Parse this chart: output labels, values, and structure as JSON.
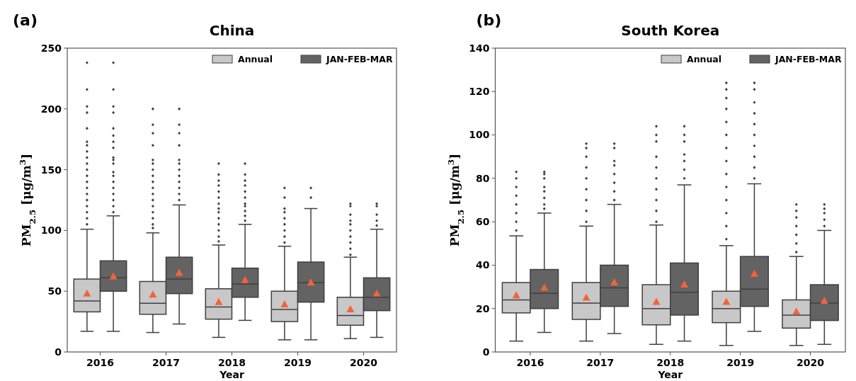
{
  "chart_data": [
    {
      "type": "box",
      "title": "China",
      "xlabel": "Year",
      "ylabel": "PM$_{2.5}$  [μg/m$^{3}$]",
      "annotations": [
        "(a)"
      ],
      "categories": [
        "2016",
        "2017",
        "2018",
        "2019",
        "2020"
      ],
      "ylim": [
        0,
        250
      ],
      "yticks": [
        0,
        50,
        100,
        150,
        200,
        250
      ],
      "legend": "top right",
      "grid": false,
      "series": [
        {
          "name": "Annual",
          "color": "#c8c8c8",
          "boxes": [
            {
              "low": 17,
              "q1": 33,
              "median": 42,
              "q3": 60,
              "high": 101,
              "mean": 48,
              "outliers": [
                105,
                110,
                115,
                120,
                125,
                130,
                135,
                140,
                145,
                150,
                155,
                160,
                165,
                170,
                173,
                184,
                197,
                202,
                216,
                238
              ]
            },
            {
              "low": 16,
              "q1": 31,
              "median": 40,
              "q3": 58,
              "high": 98,
              "mean": 47,
              "outliers": [
                102,
                105,
                110,
                115,
                120,
                125,
                130,
                135,
                140,
                145,
                150,
                155,
                158,
                170,
                180,
                187,
                200
              ]
            },
            {
              "low": 12,
              "q1": 27,
              "median": 37,
              "q3": 52,
              "high": 88,
              "mean": 41,
              "outliers": [
                91,
                95,
                100,
                105,
                110,
                115,
                118,
                122,
                127,
                132,
                137,
                141,
                146,
                155
              ]
            },
            {
              "low": 10,
              "q1": 25,
              "median": 35,
              "q3": 50,
              "high": 87,
              "mean": 39,
              "outliers": [
                90,
                95,
                100,
                105,
                110,
                115,
                118,
                127,
                135
              ]
            },
            {
              "low": 11,
              "q1": 22,
              "median": 30,
              "q3": 45,
              "high": 78,
              "mean": 35,
              "outliers": [
                80,
                85,
                90,
                95,
                100,
                105,
                108,
                113,
                120,
                122
              ]
            }
          ]
        },
        {
          "name": "JAN-FEB-MAR",
          "color": "#636363",
          "boxes": [
            {
              "low": 17,
              "q1": 50,
              "median": 61,
              "q3": 75,
              "high": 112,
              "mean": 62,
              "outliers": [
                115,
                120,
                125,
                130,
                135,
                140,
                145,
                148,
                155,
                158,
                160,
                168,
                173,
                178,
                184,
                197,
                202,
                216,
                238
              ]
            },
            {
              "low": 23,
              "q1": 48,
              "median": 60,
              "q3": 78,
              "high": 121,
              "mean": 65,
              "outliers": [
                125,
                130,
                135,
                140,
                145,
                150,
                155,
                158,
                170,
                180,
                187,
                200
              ]
            },
            {
              "low": 26,
              "q1": 45,
              "median": 56,
              "q3": 69,
              "high": 105,
              "mean": 59,
              "outliers": [
                108,
                112,
                116,
                120,
                122,
                127,
                132,
                137,
                141,
                146,
                155
              ]
            },
            {
              "low": 10,
              "q1": 41,
              "median": 57,
              "q3": 74,
              "high": 118,
              "mean": 57,
              "outliers": [
                127,
                135
              ]
            },
            {
              "low": 12,
              "q1": 34,
              "median": 45,
              "q3": 61,
              "high": 101,
              "mean": 48,
              "outliers": [
                104,
                108,
                113,
                120,
                122
              ]
            }
          ]
        }
      ]
    },
    {
      "type": "box",
      "title": "South Korea",
      "xlabel": "Year",
      "ylabel": "PM$_{2.5}$  [μg/m$^{3}$]",
      "annotations": [
        "(b)"
      ],
      "categories": [
        "2016",
        "2017",
        "2018",
        "2019",
        "2020"
      ],
      "ylim": [
        0,
        140
      ],
      "yticks": [
        0,
        20,
        40,
        60,
        80,
        100,
        120,
        140
      ],
      "legend": "top right",
      "grid": false,
      "series": [
        {
          "name": "Annual",
          "color": "#c8c8c8",
          "boxes": [
            {
              "low": 5,
              "q1": 18,
              "median": 24,
              "q3": 32,
              "high": 53.5,
              "mean": 26,
              "outliers": [
                56,
                60,
                64,
                68,
                72,
                76,
                80,
                83
              ]
            },
            {
              "low": 5,
              "q1": 15,
              "median": 22.5,
              "q3": 32,
              "high": 58,
              "mean": 25,
              "outliers": [
                60,
                65,
                70,
                75,
                80,
                85,
                90,
                94,
                96
              ]
            },
            {
              "low": 3.5,
              "q1": 12.5,
              "median": 20,
              "q3": 31,
              "high": 58.5,
              "mean": 23,
              "outliers": [
                60,
                65,
                70,
                75,
                80,
                85,
                90,
                97,
                100,
                104
              ]
            },
            {
              "low": 3,
              "q1": 13.5,
              "median": 20,
              "q3": 28,
              "high": 49,
              "mean": 23,
              "outliers": [
                52,
                58,
                64,
                70,
                76,
                82,
                88,
                94,
                100,
                106,
                112,
                117,
                121,
                124
              ]
            },
            {
              "low": 3,
              "q1": 11,
              "median": 17,
              "q3": 24,
              "high": 44,
              "mean": 18.5,
              "outliers": [
                46,
                50,
                54,
                58,
                62,
                65,
                68
              ]
            }
          ]
        },
        {
          "name": "JAN-FEB-MAR",
          "color": "#636363",
          "boxes": [
            {
              "low": 9,
              "q1": 20,
              "median": 27,
              "q3": 38,
              "high": 64,
              "mean": 29.5,
              "outliers": [
                66,
                68,
                71,
                74,
                76,
                80,
                82,
                83
              ]
            },
            {
              "low": 8.5,
              "q1": 21,
              "median": 29.5,
              "q3": 40,
              "high": 68,
              "mean": 32,
              "outliers": [
                70,
                74,
                78,
                82,
                86,
                88,
                94,
                96
              ]
            },
            {
              "low": 5,
              "q1": 17,
              "median": 27.5,
              "q3": 41,
              "high": 77,
              "mean": 31,
              "outliers": [
                80,
                84,
                88,
                91,
                97,
                100,
                104
              ]
            },
            {
              "low": 9.5,
              "q1": 21,
              "median": 29,
              "q3": 44,
              "high": 77.5,
              "mean": 36,
              "outliers": [
                80,
                85,
                90,
                95,
                100,
                105,
                110,
                115,
                121,
                124
              ]
            },
            {
              "low": 3.5,
              "q1": 14.5,
              "median": 22.5,
              "q3": 31,
              "high": 56,
              "mean": 23.5,
              "outliers": [
                58,
                61,
                64,
                66,
                68
              ]
            }
          ]
        }
      ]
    }
  ]
}
